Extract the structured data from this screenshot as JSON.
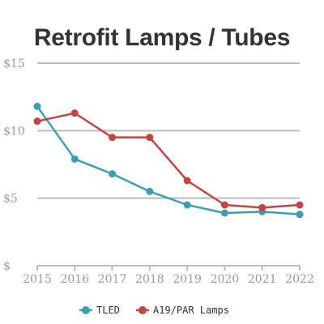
{
  "chart_data": {
    "type": "line",
    "title": "Retrofit Lamps / Tubes",
    "x": [
      2015,
      2016,
      2017,
      2018,
      2019,
      2020,
      2021,
      2022
    ],
    "y_ticks": [
      "$",
      "$5",
      "$10",
      "$15"
    ],
    "y_tick_values": [
      0,
      5,
      10,
      15
    ],
    "ylim": [
      0,
      15
    ],
    "grid": true,
    "legend_position": "bottom",
    "series": [
      {
        "name": "TLED",
        "color": "#3aa0b0",
        "values": [
          11.8,
          7.9,
          6.8,
          5.5,
          4.5,
          3.9,
          4.0,
          3.8
        ]
      },
      {
        "name": "A19/PAR Lamps",
        "color": "#c64343",
        "values": [
          10.7,
          11.3,
          9.5,
          9.5,
          6.3,
          4.5,
          4.3,
          4.5
        ]
      }
    ]
  }
}
